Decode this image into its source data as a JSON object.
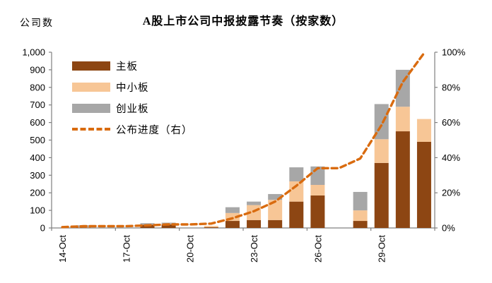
{
  "title": "A股上市公司中报披露节奏（按家数）",
  "ylabel_left": "公司数",
  "legend": [
    "主板",
    "中小板",
    "创业板",
    "公布进度（右）"
  ],
  "colors": {
    "main_board": "#8D4613",
    "sme_board": "#F7C696",
    "chinext_board": "#A7A7A7",
    "progress_line": "#D96B0F",
    "axis_line": "#808080",
    "tick_text": "#000000"
  },
  "chart_data": {
    "type": "bar",
    "subtype": "stacked-bars-with-line-overlay",
    "categories": [
      "14-Oct",
      "15-Oct",
      "16-Oct",
      "17-Oct",
      "18-Oct",
      "19-Oct",
      "20-Oct",
      "21-Oct",
      "22-Oct",
      "23-Oct",
      "24-Oct",
      "25-Oct",
      "26-Oct",
      "27-Oct",
      "28-Oct",
      "29-Oct",
      "30-Oct",
      "31-Oct"
    ],
    "x_tick_labels": [
      "14-Oct",
      "17-Oct",
      "20-Oct",
      "23-Oct",
      "26-Oct",
      "29-Oct"
    ],
    "x_tick_indices": [
      0,
      3,
      6,
      9,
      12,
      15
    ],
    "series": [
      {
        "name": "主板",
        "axis": "left",
        "color_key": "main_board",
        "values": [
          0,
          2,
          0,
          0,
          18,
          20,
          0,
          4,
          40,
          45,
          45,
          150,
          185,
          0,
          40,
          370,
          550,
          490
        ]
      },
      {
        "name": "中小板",
        "axis": "left",
        "color_key": "sme_board",
        "values": [
          0,
          3,
          0,
          0,
          2,
          3,
          0,
          8,
          45,
          85,
          115,
          115,
          60,
          0,
          60,
          135,
          140,
          130
        ]
      },
      {
        "name": "创业板",
        "axis": "left",
        "color_key": "chinext_board",
        "values": [
          0,
          10,
          0,
          0,
          7,
          7,
          0,
          0,
          33,
          20,
          33,
          80,
          105,
          0,
          105,
          200,
          210,
          0
        ]
      },
      {
        "name": "公布进度（右）",
        "axis": "right",
        "type": "dashed-line",
        "color_key": "progress_line",
        "values": [
          0.5,
          1,
          1,
          1,
          1.5,
          2,
          2,
          2.5,
          5.5,
          9.5,
          15,
          24,
          34,
          34,
          39.5,
          58.5,
          83,
          99.5
        ]
      }
    ],
    "y_left": {
      "label": "公司数",
      "min": 0,
      "max": 1000,
      "tick_values": [
        0,
        100,
        200,
        300,
        400,
        500,
        600,
        700,
        800,
        900,
        1000
      ],
      "tick_labels": [
        "0",
        "100",
        "200",
        "300",
        "400",
        "500",
        "600",
        "700",
        "800",
        "900",
        "1,000"
      ]
    },
    "y_right": {
      "label": "公布进度",
      "min": 0,
      "max": 100,
      "tick_values": [
        0,
        20,
        40,
        60,
        80,
        100
      ],
      "tick_labels": [
        "0%",
        "20%",
        "40%",
        "60%",
        "80%",
        "100%"
      ]
    },
    "grid": false,
    "legend_position": "upper-left-inside"
  }
}
